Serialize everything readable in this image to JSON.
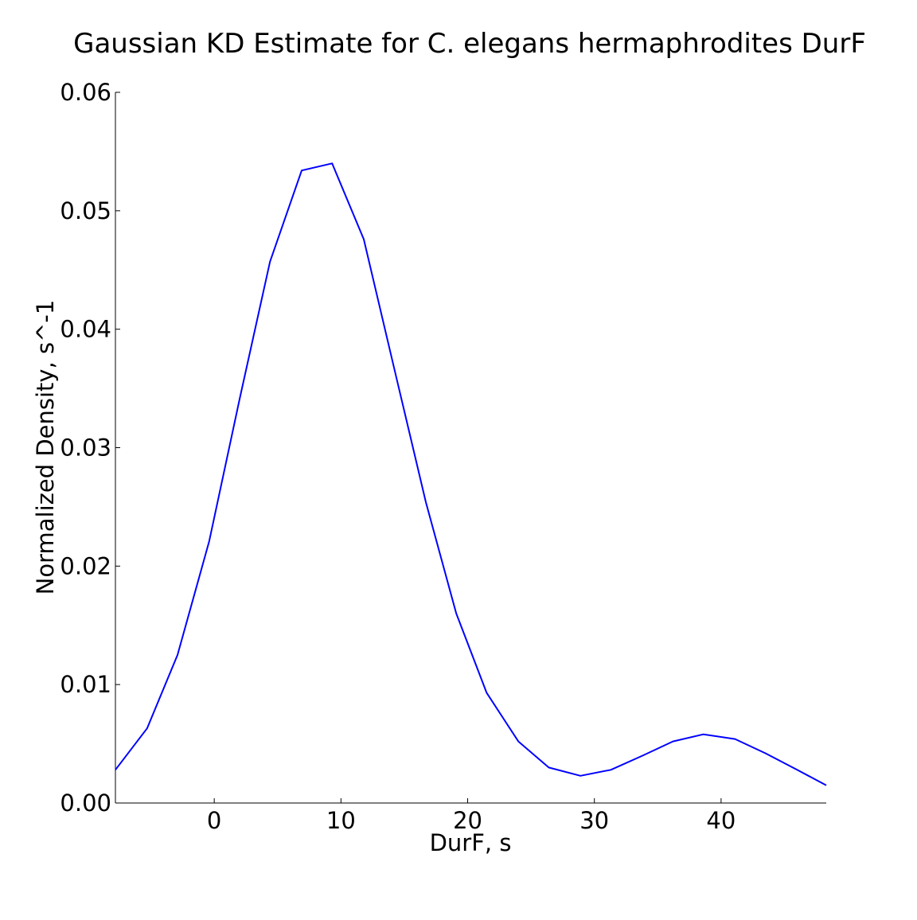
{
  "chart_data": {
    "type": "line",
    "title": "Gaussian KD Estimate for C. elegans hermaphrodites DurF",
    "xlabel": "DurF, s",
    "ylabel": "Normalized Density, s^-1",
    "xlim": [
      -7.8,
      48.3
    ],
    "ylim": [
      0.0,
      0.06
    ],
    "xticks": [
      0,
      10,
      20,
      30,
      40
    ],
    "xtick_labels": [
      "0",
      "10",
      "20",
      "30",
      "40"
    ],
    "yticks": [
      0.0,
      0.01,
      0.02,
      0.03,
      0.04,
      0.05,
      0.06
    ],
    "ytick_labels": [
      "0.00",
      "0.01",
      "0.02",
      "0.03",
      "0.04",
      "0.05",
      "0.06"
    ],
    "grid": false,
    "line_color": "#0000ff",
    "series": [
      {
        "x": [
          -7.8,
          -5.3,
          -2.9,
          -0.4,
          2.0,
          4.4,
          6.9,
          9.3,
          11.8,
          14.2,
          16.7,
          19.1,
          21.5,
          24.0,
          26.4,
          28.9,
          31.3,
          33.8,
          36.2,
          38.6,
          41.1,
          43.5,
          46.0,
          48.3
        ],
        "y": [
          0.0028,
          0.0063,
          0.0125,
          0.0221,
          0.0341,
          0.0457,
          0.0534,
          0.054,
          0.0476,
          0.0367,
          0.0254,
          0.016,
          0.0093,
          0.0052,
          0.003,
          0.0023,
          0.0028,
          0.004,
          0.0052,
          0.0058,
          0.0054,
          0.0042,
          0.0028,
          0.0015
        ]
      }
    ]
  }
}
